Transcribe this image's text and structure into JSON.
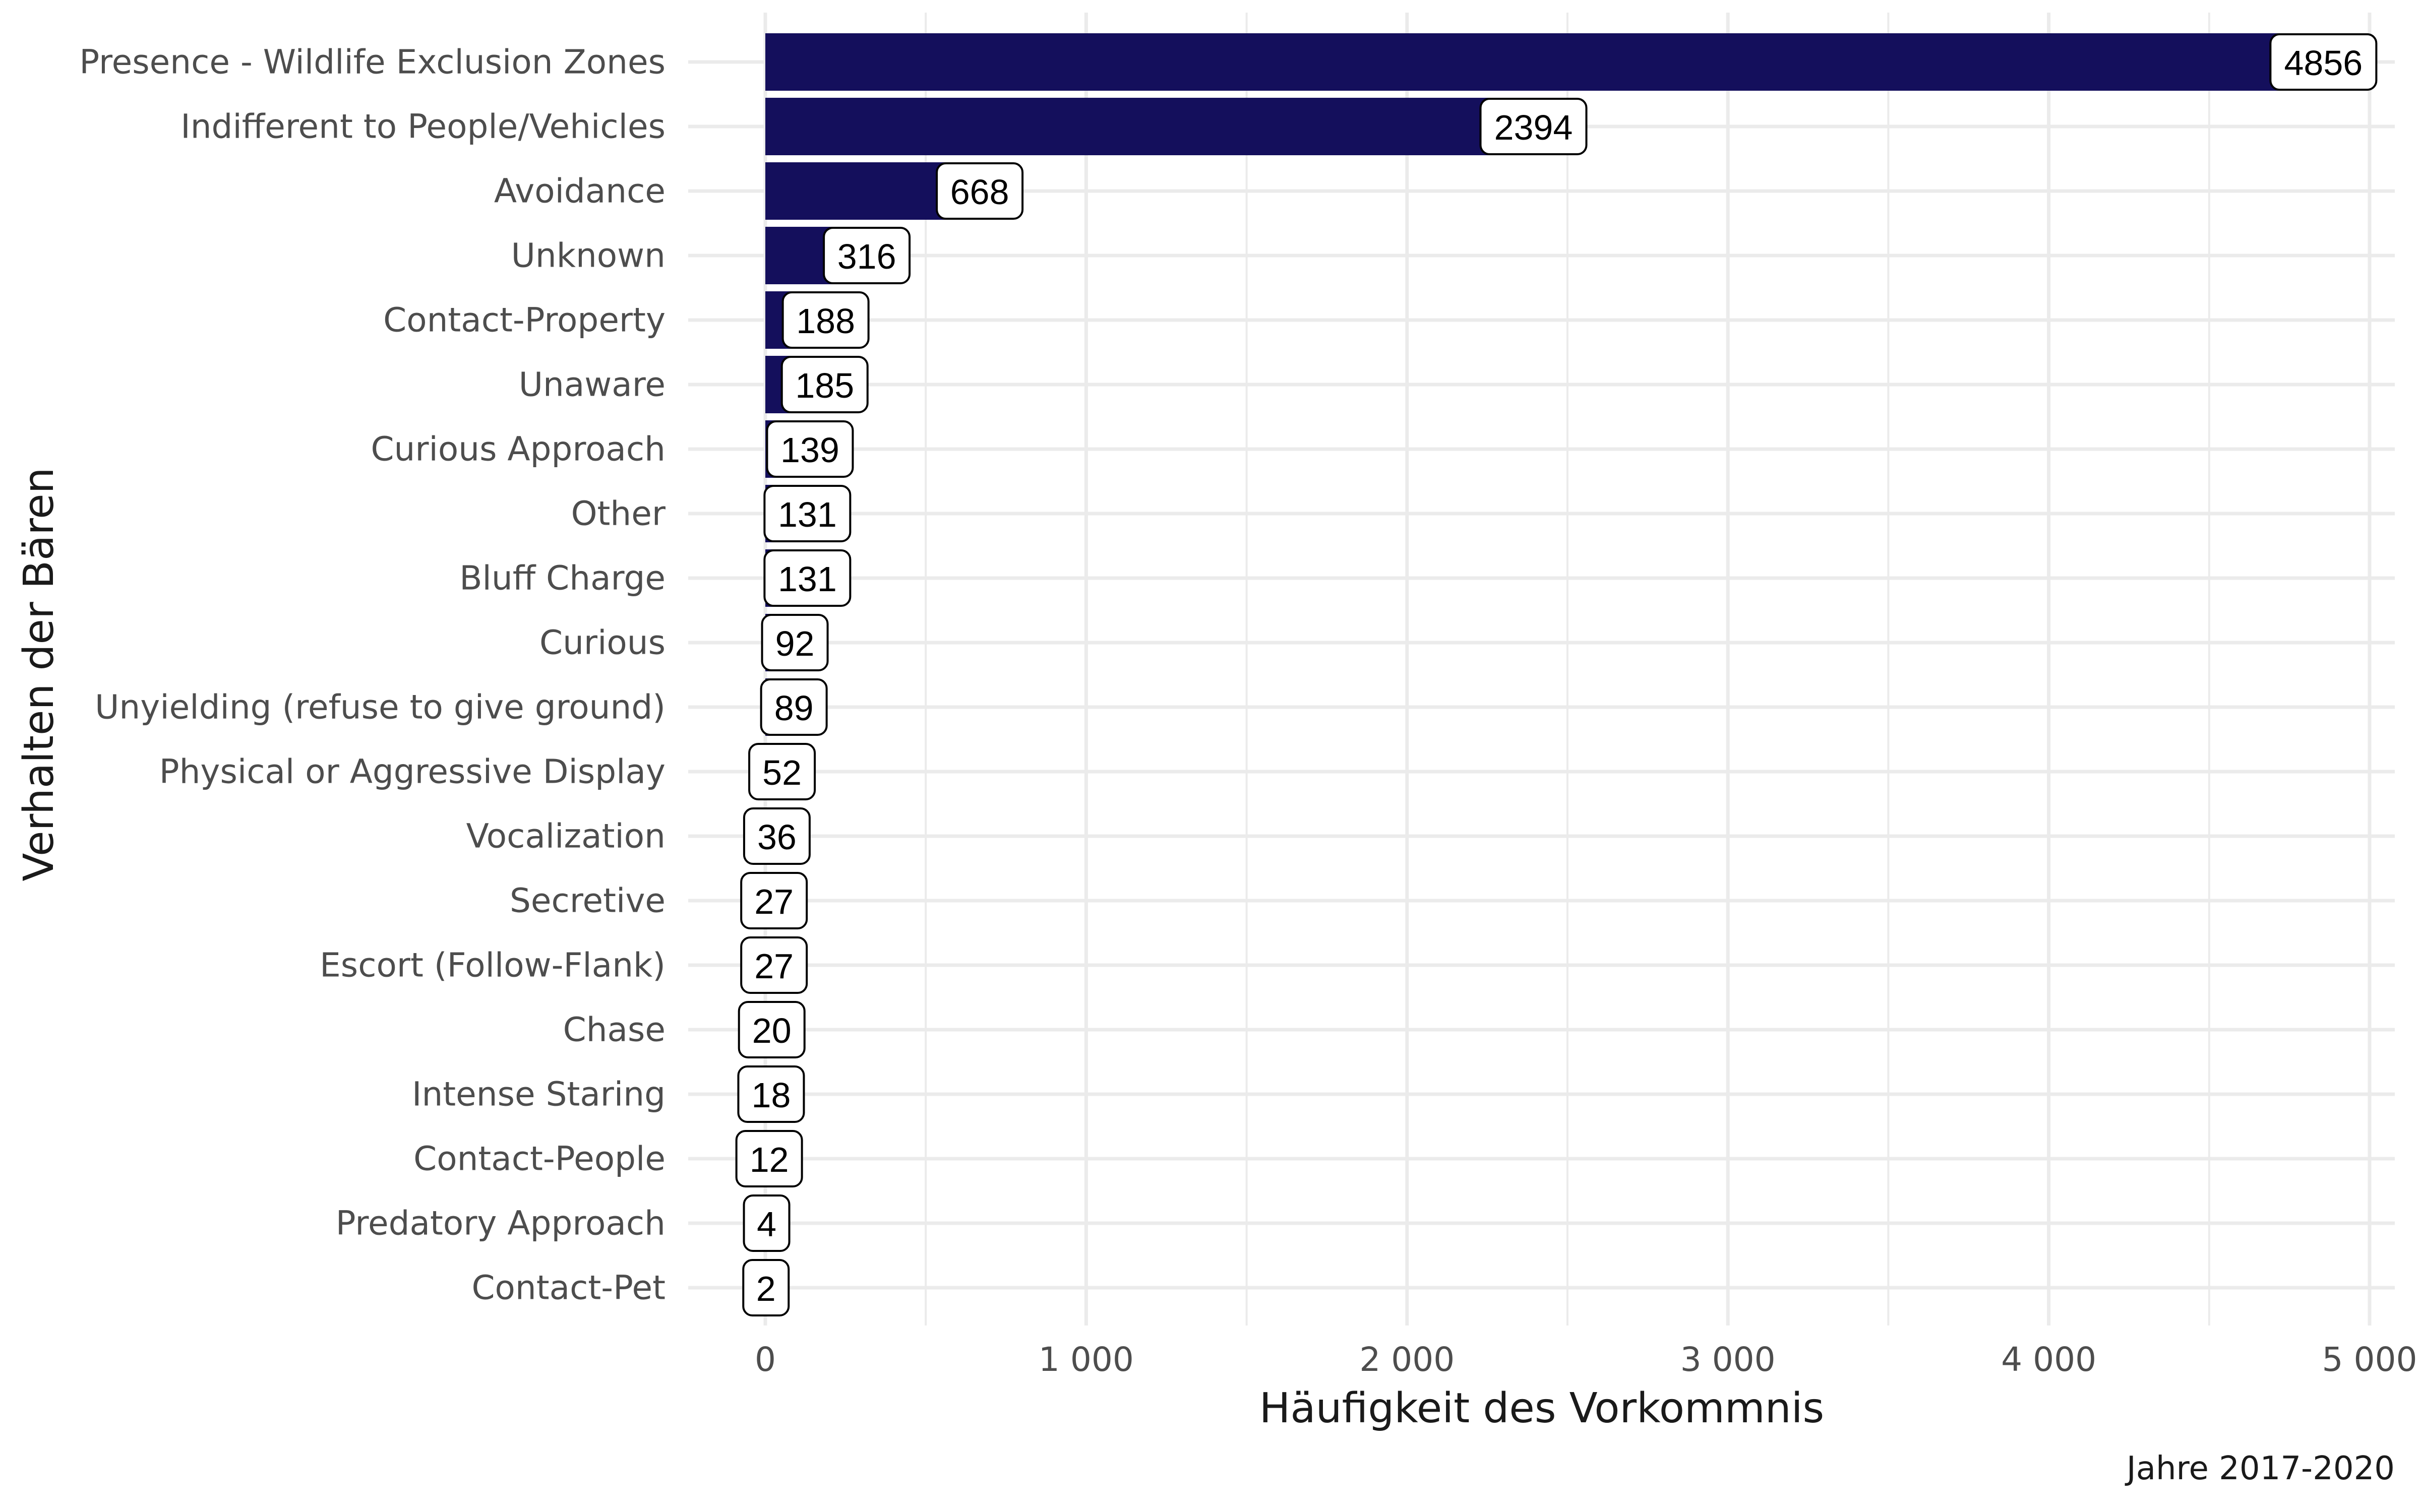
{
  "chart_data": {
    "type": "bar",
    "orientation": "horizontal",
    "categories": [
      "Presence - Wildlife Exclusion Zones",
      "Indifferent to People/Vehicles",
      "Avoidance",
      "Unknown",
      "Contact-Property",
      "Unaware",
      "Curious Approach",
      "Other",
      "Bluff Charge",
      "Curious",
      "Unyielding (refuse to give ground)",
      "Physical or Aggressive Display",
      "Vocalization",
      "Secretive",
      "Escort (Follow-Flank)",
      "Chase",
      "Intense Staring",
      "Contact-People",
      "Predatory Approach",
      "Contact-Pet"
    ],
    "values": [
      4856,
      2394,
      668,
      316,
      188,
      185,
      139,
      131,
      131,
      92,
      89,
      52,
      36,
      27,
      27,
      20,
      18,
      12,
      4,
      2
    ],
    "data_labels": [
      "4856",
      "2394",
      "668",
      "316",
      "188",
      "185",
      "139",
      "131",
      "131",
      "92",
      "89",
      "52",
      "36",
      "27",
      "27",
      "20",
      "18",
      "12",
      "4",
      "2"
    ],
    "xlabel": "Häufigkeit des Vorkommnis",
    "ylabel": "Verhalten der Bären",
    "caption": "Jahre 2017-2020",
    "xlim": [
      0,
      5000
    ],
    "xticks": [
      0,
      1000,
      2000,
      3000,
      4000,
      5000
    ],
    "xtick_labels": [
      "0",
      "1 000",
      "2 000",
      "3 000",
      "4 000",
      "5 000"
    ],
    "grid": true,
    "legend": "none",
    "bar_color": "#140f5c",
    "grid_color": "#ebebeb"
  }
}
